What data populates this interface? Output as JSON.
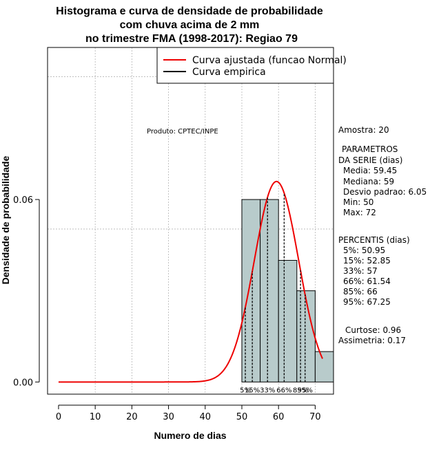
{
  "chart_data": {
    "type": "bar",
    "title_lines": [
      "Histograma e curva de densidade de probabilidade",
      "com chuva acima de 2 mm",
      "no trimestre FMA (1998-2017): Regiao 79"
    ],
    "xlabel": "Numero de dias",
    "ylabel": "Densidade de probabilidade",
    "xlim": [
      -3,
      75
    ],
    "ylim": [
      -0.004,
      0.11
    ],
    "x_ticks": [
      0,
      10,
      20,
      30,
      40,
      50,
      60,
      70
    ],
    "y_ticks": [
      0.0,
      0.06
    ],
    "y_tick_labels": [
      "0.00",
      "0.06"
    ],
    "grid": true,
    "grid_x": [
      10,
      20,
      30,
      40,
      50,
      60,
      70
    ],
    "grid_y": [
      0.0503,
      0.1004
    ],
    "histogram": {
      "bins": [
        [
          50,
          55
        ],
        [
          55,
          60
        ],
        [
          60,
          65
        ],
        [
          65,
          70
        ],
        [
          70,
          75
        ]
      ],
      "density": [
        0.06,
        0.06,
        0.04,
        0.03,
        0.01
      ],
      "fill": "#b8cbcb"
    },
    "normal_curve": {
      "name": "Curva ajustada (funcao Normal)",
      "color": "#ee0000",
      "mean": 59.45,
      "sd": 6.05,
      "x_range": [
        0,
        72
      ]
    },
    "percentile_lines": {
      "x": [
        50.95,
        52.85,
        57,
        61.54,
        66,
        67.25
      ],
      "labels": [
        "5%",
        "15%",
        "33%",
        "66%",
        "85%",
        "95%"
      ]
    },
    "legend": {
      "position": "top-right",
      "entries": [
        {
          "label": "Curva ajustada (funcao Normal)",
          "color": "#ee0000"
        },
        {
          "label": "Curva empirica",
          "color": "#000000"
        }
      ]
    },
    "annotation_produto": "Produto: CPTEC/INPE",
    "side_text": {
      "amostra": "Amostra: 20",
      "parametros_header_1": "PARAMETROS",
      "parametros_header_2": "DA SERIE (dias)",
      "media": "Media: 59.45",
      "mediana": "Mediana: 59",
      "desvio": "Desvio padrao: 6.05",
      "min": "Min: 50",
      "max": "Max: 72",
      "percentis_header": "PERCENTIS (dias)",
      "p5": "5%: 50.95",
      "p15": "15%: 52.85",
      "p33": "33%: 57",
      "p66": "66%: 61.54",
      "p85": "85%: 66",
      "p95": "95%: 67.25",
      "curtose": "Curtose: 0.96",
      "assimetria": "Assimetria: 0.17"
    }
  }
}
